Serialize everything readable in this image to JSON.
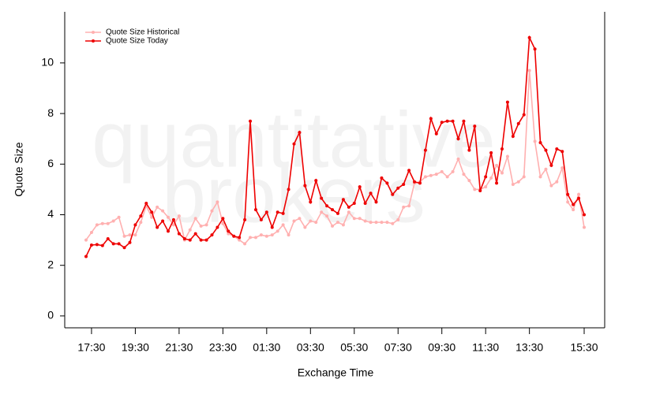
{
  "chart_data": {
    "type": "line",
    "x_label": "Exchange Time",
    "y_label": "Quote Size",
    "watermark": [
      "quantitative",
      "brokers"
    ],
    "legend": "top-left",
    "categories": [
      null,
      "17:30",
      null,
      null,
      null,
      null,
      null,
      null,
      null,
      "19:30",
      null,
      null,
      null,
      null,
      null,
      null,
      null,
      "21:30",
      null,
      null,
      null,
      null,
      null,
      null,
      null,
      "23:30",
      null,
      null,
      null,
      null,
      null,
      null,
      null,
      "01:30",
      null,
      null,
      null,
      null,
      null,
      null,
      null,
      "03:30",
      null,
      null,
      null,
      null,
      null,
      null,
      null,
      "05:30",
      null,
      null,
      null,
      null,
      null,
      null,
      null,
      "07:30",
      null,
      null,
      null,
      null,
      null,
      null,
      null,
      "09:30",
      null,
      null,
      null,
      null,
      null,
      null,
      null,
      "11:30",
      null,
      null,
      null,
      null,
      null,
      null,
      null,
      "13:30",
      null,
      null,
      null,
      null,
      null,
      null,
      null,
      null,
      null,
      "15:30"
    ],
    "series": [
      {
        "name": "Quote Size Historical",
        "color": "#ffb0b0",
        "values": [
          3.0,
          3.3,
          3.6,
          3.65,
          3.65,
          3.75,
          3.9,
          3.15,
          3.2,
          3.2,
          3.7,
          4.35,
          3.9,
          4.3,
          4.15,
          3.9,
          3.6,
          3.95,
          3.0,
          3.4,
          3.85,
          3.55,
          3.6,
          4.15,
          4.5,
          3.65,
          3.25,
          3.15,
          3.0,
          2.85,
          3.1,
          3.1,
          3.2,
          3.15,
          3.2,
          3.35,
          3.6,
          3.2,
          3.75,
          3.85,
          3.5,
          3.75,
          3.7,
          4.1,
          3.95,
          3.55,
          3.7,
          3.6,
          4.1,
          3.85,
          3.85,
          3.75,
          3.7,
          3.7,
          3.7,
          3.7,
          3.65,
          3.8,
          4.3,
          4.35,
          5.25,
          5.3,
          5.5,
          5.55,
          5.6,
          5.7,
          5.5,
          5.7,
          6.2,
          5.6,
          5.35,
          5.0,
          5.0,
          5.1,
          5.45,
          5.95,
          5.65,
          6.3,
          5.2,
          5.3,
          5.5,
          9.7,
          6.9,
          5.5,
          5.8,
          5.15,
          5.3,
          5.85,
          4.5,
          4.2,
          4.8,
          3.5
        ]
      },
      {
        "name": "Quote Size Today",
        "color": "#ee0000",
        "values": [
          2.35,
          2.8,
          2.82,
          2.78,
          3.05,
          2.85,
          2.85,
          2.7,
          2.9,
          3.6,
          3.95,
          4.45,
          4.1,
          3.5,
          3.75,
          3.35,
          3.8,
          3.25,
          3.05,
          3.0,
          3.25,
          3.0,
          3.0,
          3.2,
          3.5,
          3.85,
          3.35,
          3.15,
          3.1,
          3.8,
          7.7,
          4.2,
          3.8,
          4.1,
          3.5,
          4.1,
          4.05,
          5.0,
          6.8,
          7.25,
          5.15,
          4.5,
          5.35,
          4.65,
          4.35,
          4.2,
          4.05,
          4.6,
          4.3,
          4.45,
          5.1,
          4.45,
          4.85,
          4.5,
          5.45,
          5.25,
          4.8,
          5.05,
          5.2,
          5.75,
          5.3,
          5.25,
          6.55,
          7.8,
          7.2,
          7.65,
          7.7,
          7.7,
          7.0,
          7.7,
          6.55,
          7.5,
          4.95,
          5.5,
          6.45,
          5.25,
          6.6,
          8.45,
          7.1,
          7.6,
          7.95,
          11.0,
          10.55,
          6.85,
          6.55,
          5.95,
          6.6,
          6.5,
          4.8,
          4.4,
          4.65,
          4.0
        ]
      }
    ],
    "ylim": [
      -0.47,
      12.02
    ],
    "yticks": [
      0,
      2,
      4,
      6,
      8,
      10
    ]
  }
}
